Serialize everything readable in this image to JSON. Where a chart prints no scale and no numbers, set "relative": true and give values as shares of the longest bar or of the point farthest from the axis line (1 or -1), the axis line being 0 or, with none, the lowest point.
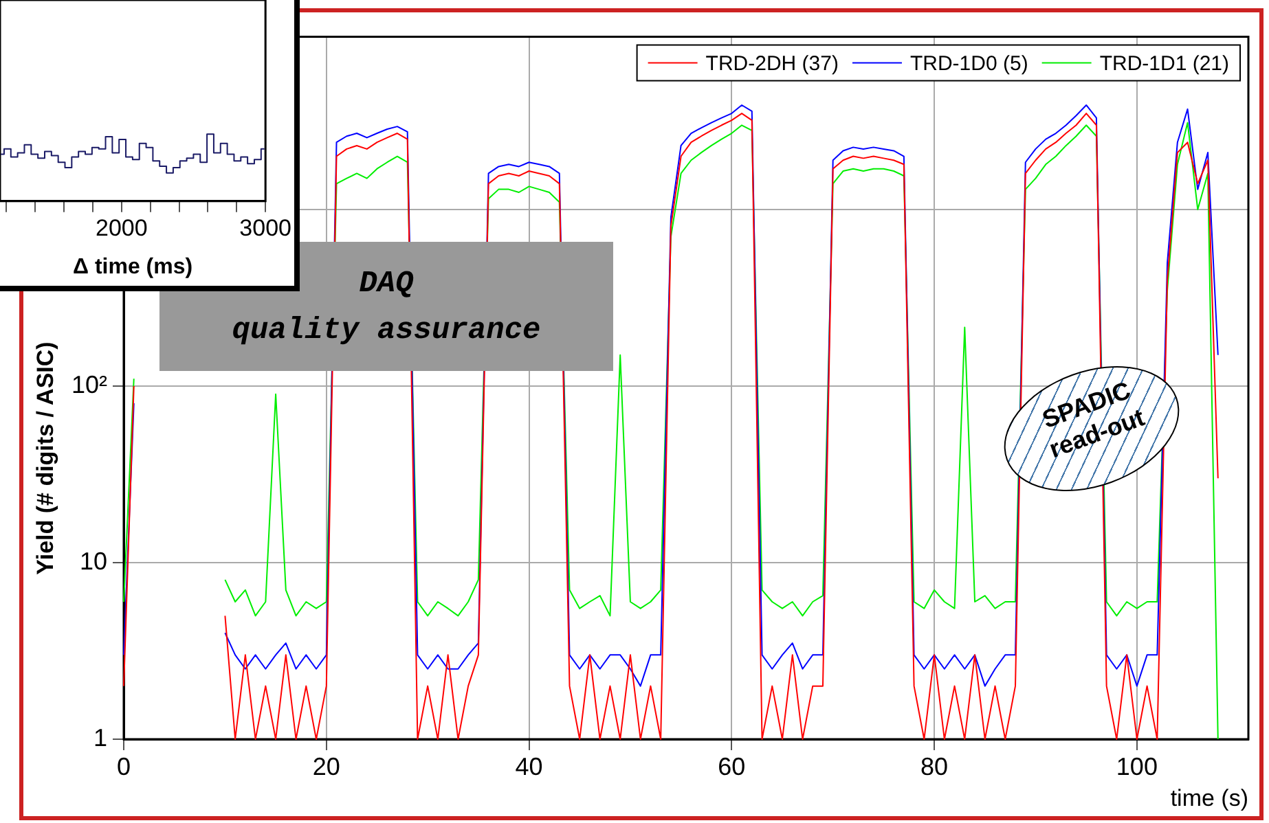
{
  "chart_data": [
    {
      "type": "step",
      "xlabel": "Δ time (ms)",
      "relative": true,
      "xlim": [
        1155,
        3000
      ],
      "xticks": [
        {
          "value": 1200,
          "label": null
        },
        {
          "value": 1400,
          "label": null
        },
        {
          "value": 1600,
          "label": null
        },
        {
          "value": 1800,
          "label": null
        },
        2000,
        {
          "value": 2200,
          "label": null
        },
        {
          "value": 2400,
          "label": null
        },
        {
          "value": 2600,
          "label": null
        },
        {
          "value": 2800,
          "label": null
        },
        3000
      ],
      "x": [
        1160,
        1207,
        1254,
        1301,
        1348,
        1395,
        1442,
        1489,
        1536,
        1583,
        1630,
        1677,
        1724,
        1771,
        1818,
        1865,
        1912,
        1959,
        2006,
        2053,
        2100,
        2147,
        2194,
        2241,
        2288,
        2335,
        2382,
        2429,
        2476,
        2523,
        2570,
        2617,
        2664,
        2711,
        2758,
        2805,
        2852,
        2899,
        2946,
        2993
      ],
      "series": [
        {
          "color": "#1a1a66",
          "values": [
            0.7,
            0.78,
            0.66,
            0.72,
            0.84,
            0.7,
            0.64,
            0.74,
            0.68,
            0.58,
            0.5,
            0.66,
            0.74,
            0.7,
            0.8,
            0.78,
            0.96,
            0.72,
            0.92,
            0.66,
            0.62,
            0.86,
            0.8,
            0.6,
            0.52,
            0.42,
            0.5,
            0.6,
            0.64,
            0.7,
            0.58,
            1,
            0.72,
            0.86,
            0.7,
            0.6,
            0.66,
            0.56,
            0.62,
            0.78
          ]
        }
      ]
    },
    {
      "type": "line",
      "xlabel": "time (s)",
      "ylabel": "Yield (# digits / ASIC)",
      "log": true,
      "grid": true,
      "legend": "top right",
      "xlim": [
        0,
        111
      ],
      "xticks": [
        0,
        20,
        40,
        60,
        80,
        100
      ],
      "ylim": [
        1,
        9500
      ],
      "yticks": [
        1,
        10,
        {
          "value": 100,
          "label": "10²"
        },
        {
          "value": 1000,
          "label": null
        }
      ],
      "annotations": [
        "DAQ\nquality assurance",
        "SPADIC\nread-out"
      ],
      "x": [
        0,
        1,
        2,
        3,
        4,
        5,
        6,
        7,
        8,
        9,
        10,
        11,
        12,
        13,
        14,
        15,
        16,
        17,
        18,
        19,
        20,
        21,
        22,
        23,
        24,
        25,
        26,
        27,
        28,
        29,
        30,
        31,
        32,
        33,
        34,
        35,
        36,
        37,
        38,
        39,
        40,
        41,
        42,
        43,
        44,
        45,
        46,
        47,
        48,
        49,
        50,
        51,
        52,
        53,
        54,
        55,
        56,
        57,
        58,
        59,
        60,
        61,
        62,
        63,
        64,
        65,
        66,
        67,
        68,
        69,
        70,
        71,
        72,
        73,
        74,
        75,
        76,
        77,
        78,
        79,
        80,
        81,
        82,
        83,
        84,
        85,
        86,
        87,
        88,
        89,
        90,
        91,
        92,
        93,
        94,
        95,
        96,
        97,
        98,
        99,
        100,
        101,
        102,
        103,
        104,
        105,
        106,
        107,
        108
      ],
      "series": [
        {
          "name": "TRD-2DH (37)",
          "color": "#ff0000",
          "values": [
            2,
            100,
            null,
            null,
            null,
            null,
            null,
            null,
            null,
            null,
            5,
            1,
            3,
            1,
            2,
            1,
            3,
            1,
            2,
            1,
            2,
            2000,
            2200,
            2300,
            2200,
            2400,
            2550,
            2700,
            2500,
            1,
            2,
            1,
            3,
            1,
            2,
            3,
            1400,
            1550,
            1600,
            1550,
            1650,
            1600,
            1550,
            1400,
            2,
            1,
            3,
            1,
            2,
            1,
            3,
            1,
            2,
            1,
            800,
            2000,
            2400,
            2600,
            2800,
            3000,
            3200,
            3500,
            3200,
            1,
            2,
            1,
            3,
            1,
            2,
            2,
            1700,
            1900,
            2000,
            1950,
            2000,
            1950,
            1900,
            1800,
            2,
            1,
            3,
            1,
            2,
            1,
            3,
            1,
            2,
            1,
            2,
            1600,
            1900,
            2200,
            2400,
            2700,
            3000,
            3500,
            3000,
            2,
            1,
            3,
            1,
            2,
            1,
            400,
            2100,
            2400,
            1400,
            1900,
            30
          ]
        },
        {
          "name": "TRD-1D0 (5)",
          "color": "#0000ff",
          "values": [
            3,
            80,
            null,
            null,
            null,
            null,
            null,
            null,
            null,
            null,
            4,
            3,
            2.5,
            3,
            2.5,
            3,
            3.5,
            2.5,
            3,
            2.5,
            3,
            2400,
            2600,
            2700,
            2550,
            2700,
            2850,
            2950,
            2750,
            3,
            2.5,
            3,
            2.5,
            2.5,
            3,
            3.5,
            1600,
            1750,
            1800,
            1750,
            1850,
            1800,
            1750,
            1600,
            3,
            2.5,
            3,
            2.5,
            3,
            3,
            2.5,
            2,
            3,
            3,
            900,
            2300,
            2700,
            2900,
            3100,
            3300,
            3500,
            3900,
            3600,
            3,
            2.5,
            3,
            3.5,
            2.5,
            3,
            3,
            1900,
            2150,
            2250,
            2200,
            2250,
            2200,
            2150,
            2000,
            3,
            2.5,
            3,
            2.5,
            3,
            2.5,
            3,
            2,
            2.5,
            3,
            3,
            1850,
            2200,
            2500,
            2700,
            3000,
            3400,
            3900,
            3300,
            3,
            2.5,
            3,
            2,
            3,
            3,
            500,
            2400,
            3700,
            1300,
            2100,
            150
          ]
        },
        {
          "name": "TRD-1D1 (21)",
          "color": "#00ee00",
          "values": [
            6,
            110,
            null,
            null,
            null,
            null,
            null,
            null,
            null,
            null,
            8,
            6,
            7,
            5,
            6,
            90,
            7,
            5,
            6,
            5.5,
            6,
            1400,
            1500,
            1600,
            1500,
            1700,
            1850,
            2000,
            1850,
            6,
            5,
            6,
            5.5,
            5,
            6,
            8,
            1150,
            1300,
            1300,
            1250,
            1350,
            1300,
            1250,
            1100,
            7,
            5.5,
            6,
            6.5,
            5,
            150,
            6,
            5.5,
            6,
            7,
            700,
            1600,
            1900,
            2100,
            2300,
            2500,
            2700,
            3000,
            2800,
            7,
            6,
            5.5,
            6,
            5,
            6,
            6.5,
            1400,
            1650,
            1700,
            1650,
            1700,
            1700,
            1650,
            1550,
            6,
            5.5,
            7,
            6,
            5.5,
            215,
            6,
            6.5,
            5.5,
            6,
            6,
            1300,
            1500,
            1800,
            2000,
            2300,
            2600,
            3000,
            2600,
            6,
            5,
            6,
            5.5,
            6,
            6,
            350,
            1800,
            3100,
            1000,
            1600,
            1
          ]
        }
      ]
    }
  ]
}
